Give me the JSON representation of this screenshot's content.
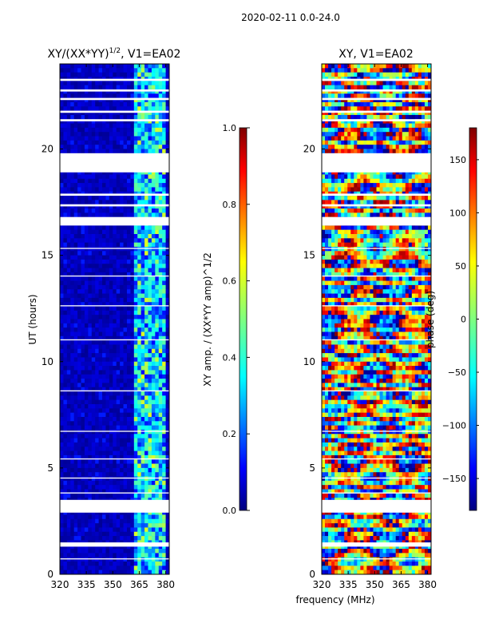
{
  "figure_title": "2020-02-11 0.0-24.0",
  "shared_xlabel": "frequency (MHz)",
  "colors": {
    "jet": [
      "#00007f",
      "#0000ff",
      "#007fff",
      "#00ffff",
      "#7fff7f",
      "#ffff00",
      "#ff7f00",
      "#ff0000",
      "#7f0000"
    ],
    "background": "#00007f",
    "gap": "#ffffff",
    "frame": "#000000"
  },
  "chart_data": [
    {
      "id": "amp",
      "type": "heatmap",
      "title_text": "XY/(XX*YY)",
      "title_superscript": "1/2",
      "title_suffix": ", V1=EA02",
      "xlabel": "",
      "ylabel": "UT (hours)",
      "xlim": [
        320,
        382
      ],
      "ylim": [
        0,
        24
      ],
      "xticks": [
        320,
        335,
        350,
        365,
        380
      ],
      "yticks": [
        0,
        5,
        10,
        15,
        20
      ],
      "colorbar": {
        "label": "XY amp. / (XX*YY amp)^1/2",
        "range": [
          0.0,
          1.0
        ],
        "ticks": [
          "0.0",
          "0.2",
          "0.4",
          "0.6",
          "0.8",
          "1.0"
        ],
        "tick_values": [
          0.0,
          0.2,
          0.4,
          0.6,
          0.8,
          1.0
        ]
      }
    },
    {
      "id": "phase",
      "type": "heatmap",
      "title_text": "XY, V1=EA02",
      "xlabel": "frequency (MHz)",
      "ylabel": "",
      "xlim": [
        320,
        382
      ],
      "ylim": [
        0,
        24
      ],
      "xticks": [
        320,
        335,
        350,
        365,
        380
      ],
      "yticks": [
        0,
        5,
        10,
        15,
        20
      ],
      "colorbar": {
        "label": "phase (deg)",
        "range": [
          -180,
          180
        ],
        "ticks": [
          "150",
          "100",
          "50",
          "0",
          "−50",
          "−100",
          "−150"
        ],
        "tick_values": [
          150,
          100,
          50,
          0,
          -50,
          -100,
          -150
        ]
      }
    }
  ],
  "data_gaps_hours": [
    [
      18.9,
      19.8
    ],
    [
      16.4,
      16.8
    ],
    [
      2.9,
      3.5
    ],
    [
      1.3,
      1.5
    ],
    [
      23.2,
      23.3
    ],
    [
      22.7,
      22.8
    ],
    [
      22.3,
      22.4
    ],
    [
      21.7,
      21.8
    ],
    [
      21.3,
      21.4
    ],
    [
      17.8,
      17.9
    ],
    [
      17.3,
      17.4
    ],
    [
      15.3,
      15.35
    ],
    [
      14.0,
      14.05
    ],
    [
      12.6,
      12.65
    ],
    [
      11.0,
      11.05
    ],
    [
      8.6,
      8.65
    ],
    [
      6.7,
      6.75
    ],
    [
      5.4,
      5.45
    ],
    [
      4.5,
      4.55
    ],
    [
      3.8,
      3.85
    ],
    [
      0.7,
      0.75
    ]
  ]
}
